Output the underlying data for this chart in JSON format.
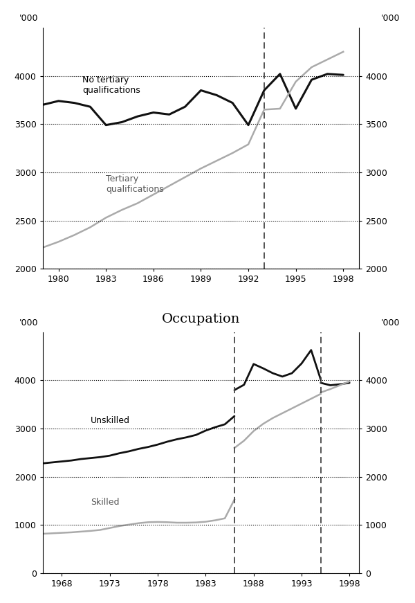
{
  "top_chart": {
    "ylabel_left": "'000",
    "ylabel_right": "'000",
    "xlim": [
      1979,
      1999
    ],
    "ylim": [
      2000,
      4500
    ],
    "yticks": [
      2000,
      2500,
      3000,
      3500,
      4000
    ],
    "xticks": [
      1980,
      1983,
      1986,
      1989,
      1992,
      1995,
      1998
    ],
    "dashed_vline": 1993,
    "no_tertiary": {
      "years": [
        1979,
        1980,
        1981,
        1982,
        1983,
        1984,
        1985,
        1986,
        1987,
        1988,
        1989,
        1990,
        1991,
        1992,
        1993,
        1994,
        1995,
        1996,
        1997,
        1998
      ],
      "values": [
        3700,
        3740,
        3720,
        3680,
        3490,
        3520,
        3580,
        3620,
        3600,
        3680,
        3850,
        3800,
        3720,
        3490,
        3850,
        4020,
        3660,
        3960,
        4020,
        4010
      ],
      "color": "#111111",
      "linewidth": 2.2,
      "label": "No tertiary\nqualifications"
    },
    "tertiary": {
      "years": [
        1979,
        1980,
        1981,
        1982,
        1983,
        1984,
        1985,
        1986,
        1987,
        1988,
        1989,
        1990,
        1991,
        1992,
        1993,
        1994,
        1995,
        1996,
        1997,
        1998
      ],
      "values": [
        2220,
        2280,
        2350,
        2430,
        2530,
        2610,
        2680,
        2770,
        2860,
        2950,
        3040,
        3120,
        3200,
        3290,
        3650,
        3660,
        3940,
        4090,
        4170,
        4250
      ],
      "color": "#aaaaaa",
      "linewidth": 1.8,
      "label": "Tertiary\nqualifications"
    }
  },
  "bottom_chart": {
    "title": "Occupation",
    "ylabel_left": "'000",
    "ylabel_right": "'000",
    "xlim": [
      1966,
      1999
    ],
    "ylim": [
      0,
      5000
    ],
    "yticks": [
      0,
      1000,
      2000,
      3000,
      4000
    ],
    "xticks": [
      1968,
      1973,
      1978,
      1983,
      1988,
      1993,
      1998
    ],
    "dashed_vlines": [
      1986,
      1995
    ],
    "unskilled_seg1": {
      "years": [
        1966,
        1967,
        1968,
        1969,
        1970,
        1971,
        1972,
        1973,
        1974,
        1975,
        1976,
        1977,
        1978,
        1979,
        1980,
        1981,
        1982,
        1983,
        1984,
        1985,
        1986
      ],
      "values": [
        2280,
        2300,
        2320,
        2340,
        2370,
        2390,
        2410,
        2440,
        2490,
        2530,
        2580,
        2620,
        2670,
        2730,
        2780,
        2820,
        2870,
        2960,
        3030,
        3090,
        3260
      ],
      "color": "#111111",
      "linewidth": 2.0
    },
    "unskilled_seg2": {
      "years": [
        1986,
        1987,
        1988,
        1989,
        1990,
        1991,
        1992,
        1993,
        1994,
        1995
      ],
      "values": [
        3800,
        3910,
        4340,
        4250,
        4150,
        4080,
        4150,
        4350,
        4630,
        4020
      ],
      "color": "#111111",
      "linewidth": 2.0
    },
    "unskilled_seg3": {
      "years": [
        1995,
        1996,
        1997,
        1998
      ],
      "values": [
        3950,
        3900,
        3920,
        3950
      ],
      "color": "#111111",
      "linewidth": 2.0
    },
    "skilled_seg1": {
      "years": [
        1966,
        1967,
        1968,
        1969,
        1970,
        1971,
        1972,
        1973,
        1974,
        1975,
        1976,
        1977,
        1978,
        1979,
        1980,
        1981,
        1982,
        1983,
        1984,
        1985,
        1986
      ],
      "values": [
        820,
        830,
        840,
        850,
        865,
        880,
        900,
        940,
        980,
        1010,
        1040,
        1060,
        1065,
        1060,
        1050,
        1050,
        1055,
        1070,
        1100,
        1140,
        1530
      ],
      "color": "#aaaaaa",
      "linewidth": 1.8
    },
    "skilled_seg2": {
      "years": [
        1986,
        1987,
        1988,
        1989,
        1990,
        1991,
        1992,
        1993,
        1994,
        1995
      ],
      "values": [
        2600,
        2750,
        2950,
        3100,
        3220,
        3320,
        3420,
        3520,
        3620,
        3720
      ],
      "color": "#aaaaaa",
      "linewidth": 1.8
    },
    "skilled_seg3": {
      "years": [
        1995,
        1996,
        1997,
        1998
      ],
      "values": [
        3750,
        3820,
        3900,
        3980
      ],
      "color": "#aaaaaa",
      "linewidth": 1.8
    },
    "unskilled_label": "Unskilled",
    "skilled_label": "Skilled"
  }
}
